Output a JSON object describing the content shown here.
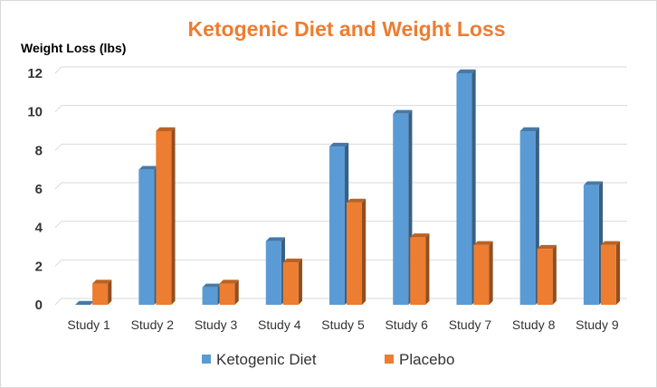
{
  "chart_data": {
    "type": "bar",
    "title": "Ketogenic Diet and Weight Loss",
    "ylabel": "Weight Loss (lbs)",
    "xlabel": "",
    "categories": [
      "Study 1",
      "Study 2",
      "Study 3",
      "Study 4",
      "Study 5",
      "Study 6",
      "Study 7",
      "Study 8",
      "Study 9"
    ],
    "series": [
      {
        "name": "Ketogenic Diet",
        "values": [
          0,
          7,
          0.9,
          3.3,
          8.2,
          9.9,
          12,
          9,
          6.2
        ],
        "color": "#5b9bd5"
      },
      {
        "name": "Placebo",
        "values": [
          1.1,
          9,
          1.1,
          2.2,
          5.3,
          3.5,
          3.1,
          2.9,
          3.1
        ],
        "color": "#ed7d31"
      }
    ],
    "ylim": [
      0,
      12
    ],
    "yticks": [
      0,
      2,
      4,
      6,
      8,
      10,
      12
    ],
    "grid": true,
    "legend_position": "bottom",
    "title_color": "#ed7d31"
  }
}
